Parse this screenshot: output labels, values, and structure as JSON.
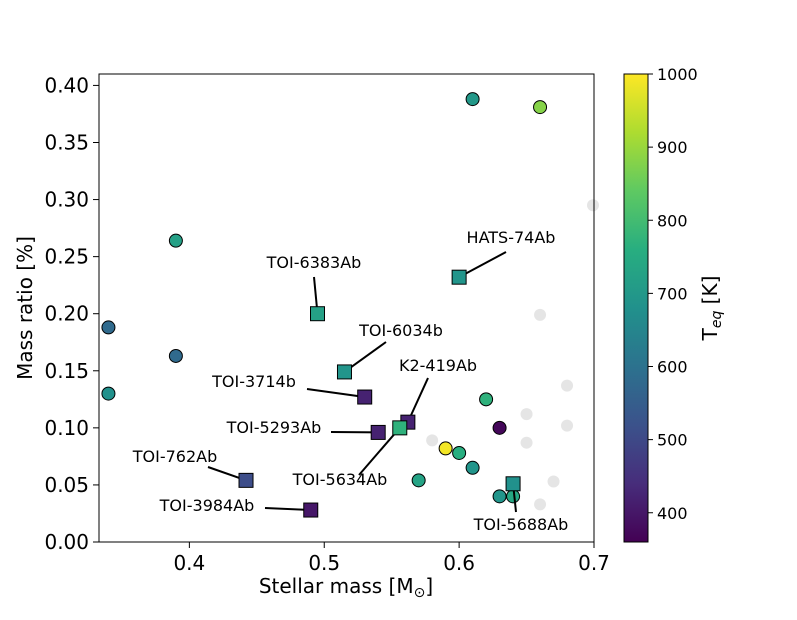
{
  "chart_data": {
    "type": "scatter",
    "xlabel": "Stellar mass [M",
    "xlabel_sub": "⊙",
    "xlabel_close": "]",
    "ylabel": "Mass ratio [%]",
    "colorbar_label": "T",
    "colorbar_label_sub": "eq",
    "colorbar_label_unit": " [K]",
    "xlim": [
      0.333,
      0.7
    ],
    "ylim": [
      0.0,
      0.41
    ],
    "x_ticks": [
      0.4,
      0.5,
      0.6,
      0.7
    ],
    "x_tick_labels": [
      "0.4",
      "0.5",
      "0.6",
      "0.7"
    ],
    "y_ticks": [
      0.0,
      0.05,
      0.1,
      0.15,
      0.2,
      0.25,
      0.3,
      0.35,
      0.4
    ],
    "y_tick_labels": [
      "0.00",
      "0.05",
      "0.10",
      "0.15",
      "0.20",
      "0.25",
      "0.30",
      "0.35",
      "0.40"
    ],
    "colorbar": {
      "range": [
        360,
        1000
      ],
      "ticks": [
        400,
        500,
        600,
        700,
        800,
        900,
        1000
      ],
      "tick_labels": [
        "400",
        "500",
        "600",
        "700",
        "800",
        "900",
        "1000"
      ],
      "colormap": "viridis"
    },
    "background_points": [
      {
        "x": 0.58,
        "y": 0.089
      },
      {
        "x": 0.65,
        "y": 0.112
      },
      {
        "x": 0.65,
        "y": 0.087
      },
      {
        "x": 0.66,
        "y": 0.199
      },
      {
        "x": 0.66,
        "y": 0.033
      },
      {
        "x": 0.67,
        "y": 0.053
      },
      {
        "x": 0.68,
        "y": 0.137
      },
      {
        "x": 0.68,
        "y": 0.102
      },
      {
        "x": 0.7,
        "y": 0.295
      }
    ],
    "circle_points": [
      {
        "x": 0.61,
        "y": 0.388,
        "teq": 700
      },
      {
        "x": 0.66,
        "y": 0.381,
        "teq": 880
      },
      {
        "x": 0.39,
        "y": 0.264,
        "teq": 720
      },
      {
        "x": 0.34,
        "y": 0.188,
        "teq": 580
      },
      {
        "x": 0.39,
        "y": 0.163,
        "teq": 580
      },
      {
        "x": 0.34,
        "y": 0.13,
        "teq": 680
      },
      {
        "x": 0.62,
        "y": 0.125,
        "teq": 770
      },
      {
        "x": 0.63,
        "y": 0.1,
        "teq": 370
      },
      {
        "x": 0.59,
        "y": 0.082,
        "teq": 990
      },
      {
        "x": 0.6,
        "y": 0.078,
        "teq": 760
      },
      {
        "x": 0.61,
        "y": 0.065,
        "teq": 690
      },
      {
        "x": 0.57,
        "y": 0.054,
        "teq": 730
      },
      {
        "x": 0.63,
        "y": 0.04,
        "teq": 690
      },
      {
        "x": 0.64,
        "y": 0.04,
        "teq": 740
      }
    ],
    "square_points": [
      {
        "name": "HATS-74Ab",
        "x": 0.6,
        "y": 0.232,
        "teq": 690
      },
      {
        "name": "TOI-6383Ab",
        "x": 0.495,
        "y": 0.2,
        "teq": 720
      },
      {
        "name": "TOI-6034b",
        "x": 0.515,
        "y": 0.149,
        "teq": 690
      },
      {
        "name": "TOI-3714b",
        "x": 0.53,
        "y": 0.127,
        "teq": 420
      },
      {
        "name": "K2-419Ab",
        "x": 0.562,
        "y": 0.105,
        "teq": 420
      },
      {
        "name": "TOI-5293Ab",
        "x": 0.54,
        "y": 0.096,
        "teq": 420
      },
      {
        "name": "TOI-5634Ab",
        "x": 0.556,
        "y": 0.1,
        "teq": 770
      },
      {
        "name": "TOI-762Ab",
        "x": 0.442,
        "y": 0.054,
        "teq": 510
      },
      {
        "name": "TOI-3984Ab",
        "x": 0.49,
        "y": 0.028,
        "teq": 400
      },
      {
        "name": "TOI-5688Ab",
        "x": 0.64,
        "y": 0.051,
        "teq": 680
      }
    ]
  }
}
